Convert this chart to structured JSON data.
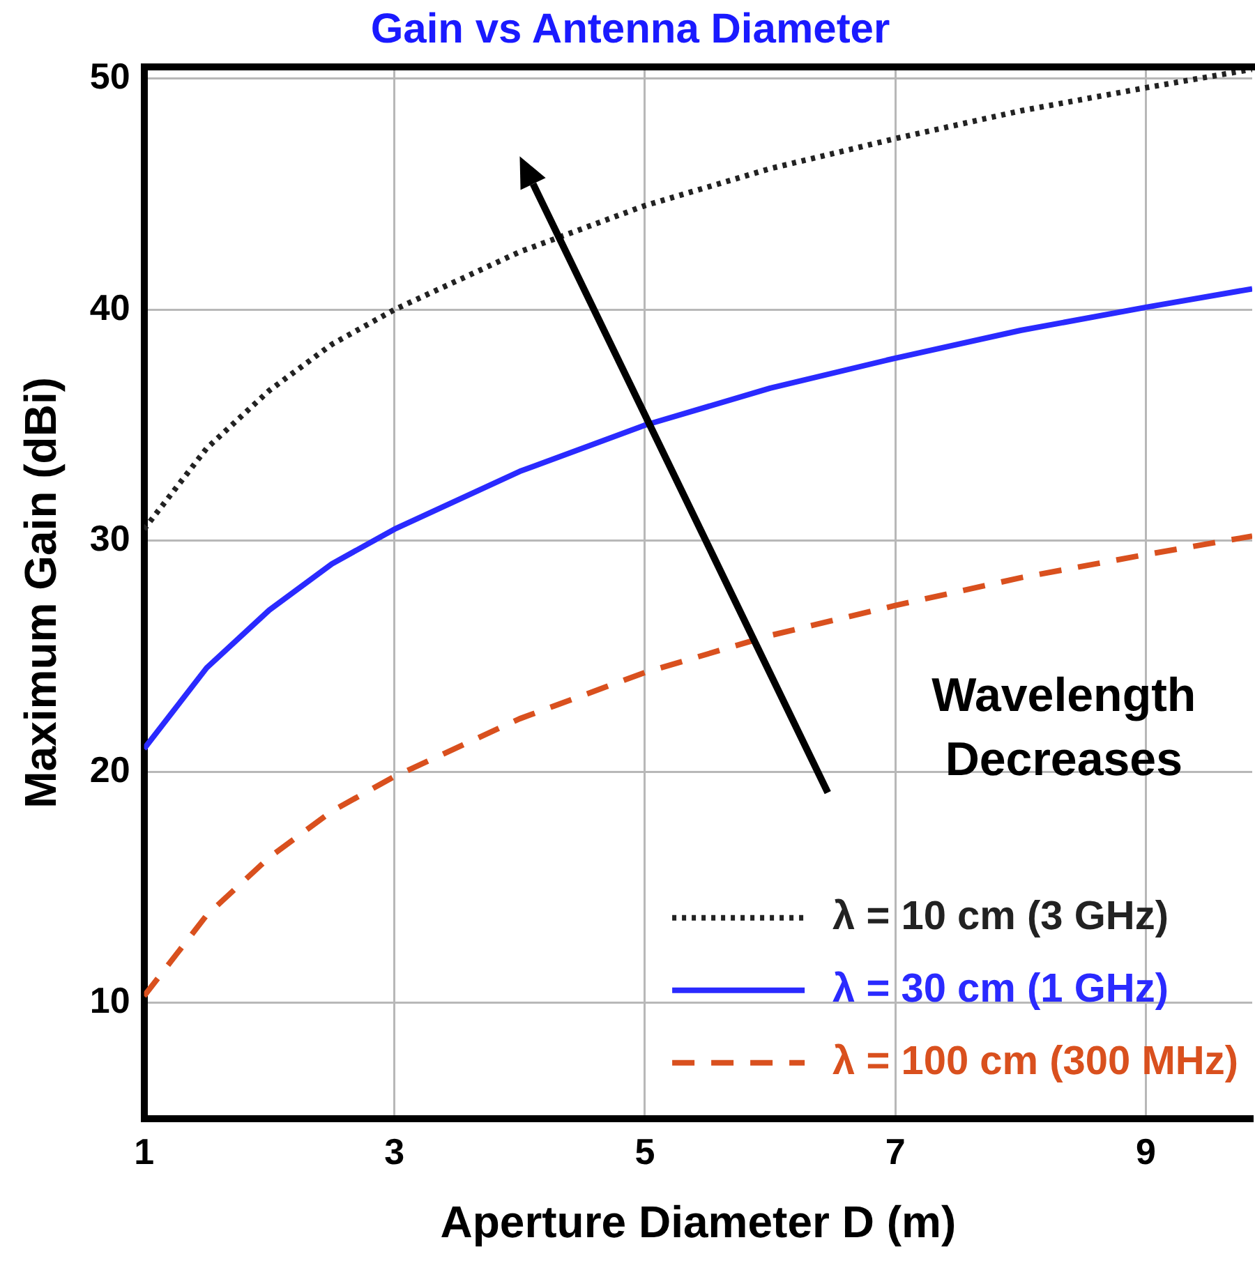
{
  "chart_data": {
    "type": "line",
    "title": "Gain vs Antenna Diameter",
    "xlabel": "Aperture Diameter D (m)",
    "ylabel": "Maximum Gain (dBi)",
    "xlim": [
      1,
      9.85
    ],
    "xticks": [
      1,
      3,
      5,
      7,
      9
    ],
    "ylim": [
      5,
      50.5
    ],
    "yticks": [
      10,
      20,
      30,
      40,
      50
    ],
    "grid": true,
    "legend": "bottom right",
    "marker": "none",
    "x": [
      1,
      1.5,
      2,
      2.5,
      3,
      4,
      5,
      6,
      7,
      8,
      9,
      9.85
    ],
    "series": [
      {
        "name": "λ = 10 cm (3 GHz)",
        "color": "#222222",
        "line_style": "dotted",
        "values": [
          30.5,
          34.0,
          36.5,
          38.5,
          40.0,
          42.5,
          44.5,
          46.1,
          47.4,
          48.6,
          49.6,
          50.4
        ]
      },
      {
        "name": "λ = 30 cm (1 GHz)",
        "color": "#2a2aff",
        "line_style": "solid",
        "values": [
          21.0,
          24.5,
          27.0,
          29.0,
          30.5,
          33.0,
          35.0,
          36.6,
          37.9,
          39.1,
          40.1,
          40.9
        ]
      },
      {
        "name": "λ = 100 cm (300 MHz)",
        "color": "#d9501e",
        "line_style": "dashed",
        "values": [
          10.3,
          13.8,
          16.3,
          18.3,
          19.8,
          22.3,
          24.3,
          25.9,
          27.2,
          28.4,
          29.4,
          30.2
        ]
      }
    ],
    "annotations": [
      "Wavelength Decreases"
    ]
  }
}
